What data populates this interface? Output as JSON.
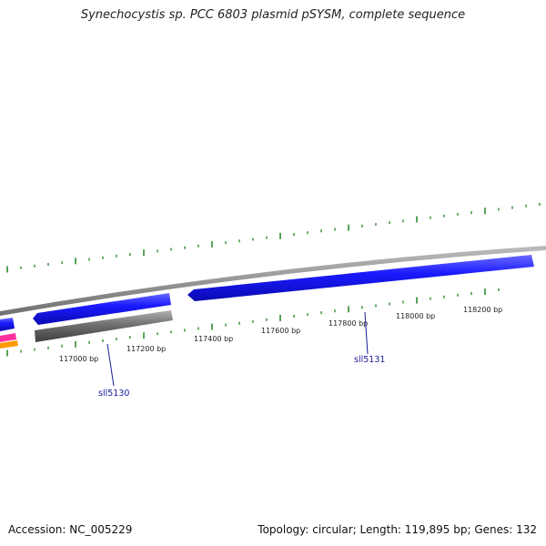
{
  "title": "Synechocystis sp. PCC 6803 plasmid pSYSM, complete sequence",
  "footer": {
    "accession": "Accession: NC_005229",
    "summary": "Topology: circular; Length: 119,895 bp; Genes: 132"
  },
  "scale": {
    "tick_labels": [
      {
        "text": "117000 bp",
        "bp": 117000
      },
      {
        "text": "117200 bp",
        "bp": 117200
      },
      {
        "text": "117400 bp",
        "bp": 117400
      },
      {
        "text": "117600 bp",
        "bp": 117600
      },
      {
        "text": "117800 bp",
        "bp": 117800
      },
      {
        "text": "118000 bp",
        "bp": 118000
      },
      {
        "text": "118200 bp",
        "bp": 118200
      }
    ]
  },
  "genes": [
    {
      "label": "sll5130",
      "color": "#1a1aff"
    },
    {
      "label": "sll5131",
      "color": "#1a1aff"
    }
  ],
  "colors": {
    "gene_forward": "#1a1aff",
    "gene_gray": "#6e6e6e",
    "backbone": "#8a8a8a",
    "tick": "#2e8b2e",
    "pink": "#ff2f9c",
    "orange": "#ff9a00"
  }
}
